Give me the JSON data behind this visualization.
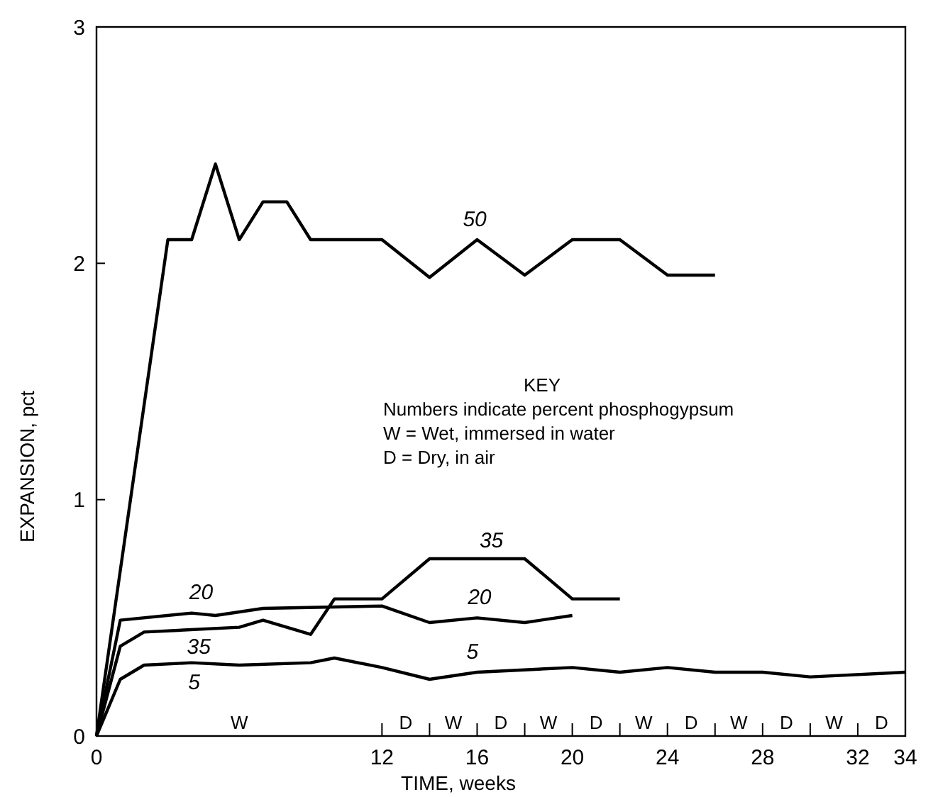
{
  "chart_data": {
    "type": "line",
    "xlabel": "TIME, weeks",
    "ylabel": "EXPANSION, pct",
    "xlim": [
      0,
      34
    ],
    "xticks": [
      0,
      12,
      16,
      20,
      24,
      28,
      32,
      34
    ],
    "ylim": [
      0,
      3
    ],
    "yticks": [
      0,
      1,
      2,
      3
    ],
    "grid": false,
    "marker": "none",
    "line_style": "solid",
    "series": [
      {
        "name": "50",
        "color": "#000000",
        "x": [
          0,
          3,
          4,
          5,
          6,
          7,
          8,
          9,
          12,
          14,
          16,
          18,
          20,
          22,
          24,
          26
        ],
        "values": [
          0,
          2.1,
          2.1,
          2.42,
          2.1,
          2.26,
          2.26,
          2.1,
          2.1,
          1.94,
          2.1,
          1.95,
          2.1,
          2.1,
          1.95,
          1.95
        ]
      },
      {
        "name": "35",
        "color": "#000000",
        "x": [
          0,
          1,
          2,
          6,
          7,
          9,
          10,
          12,
          14,
          18,
          20,
          22
        ],
        "values": [
          0,
          0.38,
          0.44,
          0.46,
          0.49,
          0.43,
          0.58,
          0.58,
          0.75,
          0.75,
          0.58,
          0.58
        ]
      },
      {
        "name": "20",
        "color": "#000000",
        "x": [
          0,
          1,
          4,
          5,
          7,
          12,
          14,
          16,
          18,
          20
        ],
        "values": [
          0,
          0.49,
          0.52,
          0.51,
          0.54,
          0.55,
          0.48,
          0.5,
          0.48,
          0.51
        ]
      },
      {
        "name": "5",
        "color": "#000000",
        "x": [
          0,
          1,
          2,
          4,
          6,
          9,
          10,
          12,
          14,
          16,
          20,
          22,
          24,
          26,
          28,
          30,
          34
        ],
        "values": [
          0,
          0.24,
          0.3,
          0.31,
          0.3,
          0.31,
          0.33,
          0.29,
          0.24,
          0.27,
          0.29,
          0.27,
          0.29,
          0.27,
          0.27,
          0.25,
          0.27
        ]
      }
    ],
    "annotations": [
      "KEY",
      "Numbers indicate percent phosphogypsum",
      "W = Wet, immersed in water",
      "D = Dry, in air",
      "W",
      "D",
      "W",
      "D",
      "W",
      "D",
      "W",
      "D",
      "W",
      "D",
      "W",
      "D"
    ]
  }
}
